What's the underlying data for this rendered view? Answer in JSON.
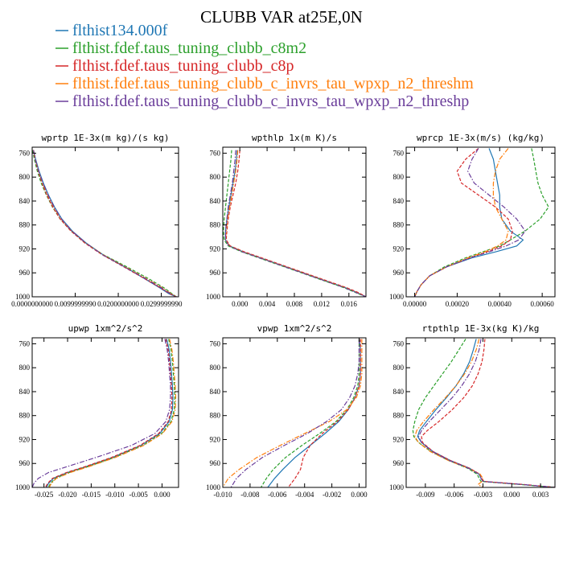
{
  "title": "CLUBB VAR at25E,0N",
  "legend": [
    {
      "label": "flthist134.000f",
      "color": "#1f77b4"
    },
    {
      "label": "flthist.fdef.taus_tuning_clubb_c8m2",
      "color": "#2ca02c"
    },
    {
      "label": "flthist.fdef.taus_tuning_clubb_c8p",
      "color": "#d62728"
    },
    {
      "label": "flthist.fdef.taus_tuning_clubb_c_invrs_tau_wpxp_n2_threshm",
      "color": "#ff7f0e"
    },
    {
      "label": "flthist.fdef.taus_tuning_clubb_c_invrs_tau_wpxp_n2_threshp",
      "color": "#6a3d9a"
    }
  ],
  "chart_data": [
    {
      "type": "line",
      "title": "wprtp 1E-3x(m kg)/(s kg)",
      "xlim": [
        0,
        0.034
      ],
      "ylim": [
        1000,
        750
      ],
      "y_reversed": true,
      "xticks": [
        0,
        0.01,
        0.02,
        0.03
      ],
      "xticklabels": [
        "0.0000000000",
        "0.0099999990",
        "0.0200000000",
        "0.0299999990"
      ],
      "yticks": [
        760,
        800,
        840,
        880,
        920,
        960,
        1000
      ],
      "y": [
        755,
        770,
        790,
        810,
        830,
        850,
        870,
        890,
        910,
        930,
        950,
        970,
        985,
        995,
        1000
      ],
      "series": [
        {
          "x": [
            0.0003,
            0.0008,
            0.0016,
            0.0026,
            0.0038,
            0.0052,
            0.0069,
            0.0093,
            0.0125,
            0.0165,
            0.0215,
            0.0262,
            0.0296,
            0.0318,
            0.0335
          ],
          "style": "solid"
        },
        {
          "x": [
            0.0001,
            0.0005,
            0.0012,
            0.0021,
            0.0033,
            0.0047,
            0.0065,
            0.009,
            0.0123,
            0.0166,
            0.022,
            0.0271,
            0.0306,
            0.0325,
            0.0335
          ],
          "style": "dashed"
        },
        {
          "x": [
            0.0003,
            0.0007,
            0.0014,
            0.0023,
            0.0034,
            0.0048,
            0.0065,
            0.009,
            0.0122,
            0.0163,
            0.0213,
            0.0262,
            0.0298,
            0.032,
            0.0335
          ],
          "style": "dashed"
        },
        {
          "x": [
            0.0003,
            0.0007,
            0.0015,
            0.0024,
            0.0036,
            0.005,
            0.0067,
            0.0092,
            0.0124,
            0.0165,
            0.0216,
            0.0266,
            0.0302,
            0.0323,
            0.0335
          ],
          "style": "dashdot"
        },
        {
          "x": [
            0.0003,
            0.0007,
            0.0015,
            0.0025,
            0.0037,
            0.0051,
            0.0068,
            0.0092,
            0.0124,
            0.0164,
            0.0214,
            0.0264,
            0.03,
            0.0321,
            0.0335
          ],
          "style": "dashdot"
        }
      ]
    },
    {
      "type": "line",
      "title": "wpthlp 1x(m K)/s",
      "xlim": [
        -0.0025,
        0.0185
      ],
      "ylim": [
        1000,
        750
      ],
      "y_reversed": true,
      "xticks": [
        0,
        0.004,
        0.008,
        0.012,
        0.016
      ],
      "xticklabels": [
        "0.000",
        "0.004",
        "0.008",
        "0.012",
        "0.016"
      ],
      "yticks": [
        760,
        800,
        840,
        880,
        920,
        960,
        1000
      ],
      "y": [
        755,
        770,
        790,
        810,
        830,
        850,
        870,
        890,
        905,
        915,
        925,
        935,
        945,
        955,
        965,
        975,
        985,
        993,
        1000
      ],
      "series": [
        {
          "x": [
            -0.0004,
            -0.0005,
            -0.0007,
            -0.001,
            -0.0013,
            -0.0016,
            -0.0019,
            -0.0021,
            -0.0021,
            -0.0015,
            0.0005,
            0.003,
            0.0055,
            0.008,
            0.0105,
            0.013,
            0.0155,
            0.0172,
            0.0185
          ],
          "style": "solid"
        },
        {
          "x": [
            -0.0012,
            -0.0013,
            -0.0015,
            -0.0017,
            -0.0019,
            -0.0021,
            -0.0023,
            -0.0024,
            -0.0023,
            -0.0017,
            0.0003,
            0.0028,
            0.0053,
            0.0078,
            0.0103,
            0.0128,
            0.0153,
            0.017,
            0.0185
          ],
          "style": "dashed"
        },
        {
          "x": [
            0.0,
            -0.0001,
            -0.0003,
            -0.0006,
            -0.001,
            -0.0014,
            -0.0017,
            -0.0019,
            -0.002,
            -0.0014,
            0.0007,
            0.0032,
            0.0057,
            0.0082,
            0.0107,
            0.0132,
            0.0157,
            0.0174,
            0.0185
          ],
          "style": "dashed"
        },
        {
          "x": [
            -0.0003,
            -0.0004,
            -0.0006,
            -0.0009,
            -0.0012,
            -0.0015,
            -0.0018,
            -0.002,
            -0.0021,
            -0.0015,
            0.0005,
            0.003,
            0.0055,
            0.008,
            0.0105,
            0.013,
            0.0155,
            0.0172,
            0.0185
          ],
          "style": "dashdot"
        },
        {
          "x": [
            -0.0006,
            -0.0007,
            -0.0009,
            -0.0011,
            -0.0014,
            -0.0017,
            -0.0019,
            -0.0021,
            -0.0021,
            -0.0016,
            0.0004,
            0.0029,
            0.0054,
            0.0079,
            0.0104,
            0.0129,
            0.0154,
            0.0171,
            0.0185
          ],
          "style": "dashdot"
        }
      ]
    },
    {
      "type": "line",
      "title": "wprcp 1E-3x(m/s) (kg/kg)",
      "xlim": [
        -4e-05,
        0.00066
      ],
      "ylim": [
        1000,
        750
      ],
      "y_reversed": true,
      "xticks": [
        0,
        0.0002,
        0.0004,
        0.0006
      ],
      "xticklabels": [
        "0.00000",
        "0.00020",
        "0.00040",
        "0.00060"
      ],
      "yticks": [
        760,
        800,
        840,
        880,
        920,
        960,
        1000
      ],
      "y": [
        752,
        770,
        790,
        810,
        830,
        850,
        870,
        890,
        905,
        915,
        925,
        935,
        950,
        965,
        980,
        992,
        1000
      ],
      "series": [
        {
          "x": [
            0.00035,
            0.00037,
            0.00038,
            0.00039,
            0.0004,
            0.0004,
            0.00041,
            0.00045,
            0.00051,
            0.00048,
            0.00038,
            0.00027,
            0.00015,
            7e-05,
            3e-05,
            1e-05,
            0.0
          ],
          "style": "solid"
        },
        {
          "x": [
            0.00055,
            0.00056,
            0.00057,
            0.00058,
            0.0006,
            0.00063,
            0.00059,
            0.00052,
            0.00045,
            0.0004,
            0.00032,
            0.00024,
            0.00014,
            7e-05,
            3e-05,
            1e-05,
            0.0
          ],
          "style": "dashed"
        },
        {
          "x": [
            0.0003,
            0.00024,
            0.0002,
            0.00022,
            0.0003,
            0.00038,
            0.00044,
            0.00046,
            0.00045,
            0.00041,
            0.00034,
            0.00026,
            0.00015,
            7e-05,
            3e-05,
            1e-05,
            0.0
          ],
          "style": "dashed"
        },
        {
          "x": [
            0.00044,
            0.0004,
            0.00038,
            0.00037,
            0.00037,
            0.00038,
            0.00041,
            0.00044,
            0.00043,
            0.00039,
            0.00033,
            0.00025,
            0.00015,
            7e-05,
            3e-05,
            1e-05,
            0.0
          ],
          "style": "dashdot"
        },
        {
          "x": [
            0.0003,
            0.00027,
            0.00025,
            0.00028,
            0.00035,
            0.00042,
            0.00048,
            0.00052,
            0.00049,
            0.00043,
            0.00035,
            0.00026,
            0.00015,
            7e-05,
            3e-05,
            1e-05,
            0.0
          ],
          "style": "dashdot"
        }
      ]
    },
    {
      "type": "line",
      "title": "upwp 1xm^2/s^2",
      "xlim": [
        -0.0275,
        0.0035
      ],
      "ylim": [
        1000,
        750
      ],
      "y_reversed": true,
      "xticks": [
        -0.025,
        -0.02,
        -0.015,
        -0.01,
        -0.005,
        0
      ],
      "xticklabels": [
        "-0.025",
        "-0.020",
        "-0.015",
        "-0.010",
        "-0.005",
        "0.000"
      ],
      "yticks": [
        760,
        800,
        840,
        880,
        920,
        960,
        1000
      ],
      "y": [
        752,
        770,
        790,
        810,
        830,
        850,
        870,
        890,
        910,
        930,
        950,
        965,
        975,
        985,
        993,
        1000
      ],
      "series": [
        {
          "x": [
            0.001,
            0.0015,
            0.0018,
            0.002,
            0.0022,
            0.0023,
            0.0022,
            0.0015,
            -0.0005,
            -0.0045,
            -0.0105,
            -0.016,
            -0.02,
            -0.023,
            -0.024,
            -0.0245
          ],
          "style": "solid"
        },
        {
          "x": [
            0.0014,
            0.0019,
            0.0022,
            0.0024,
            0.0026,
            0.0027,
            0.0026,
            0.0019,
            -0.0001,
            -0.0041,
            -0.0101,
            -0.0156,
            -0.0196,
            -0.0226,
            -0.0236,
            -0.0241
          ],
          "style": "dashed"
        },
        {
          "x": [
            0.0008,
            0.0013,
            0.0016,
            0.0018,
            0.002,
            0.0021,
            0.002,
            0.0013,
            -0.0007,
            -0.0047,
            -0.0107,
            -0.0162,
            -0.0202,
            -0.0232,
            -0.0242,
            -0.0247
          ],
          "style": "dashed"
        },
        {
          "x": [
            0.0016,
            0.0021,
            0.0024,
            0.0026,
            0.0028,
            0.0029,
            0.0028,
            0.0021,
            0.0001,
            -0.0039,
            -0.0099,
            -0.0154,
            -0.0194,
            -0.0224,
            -0.0234,
            -0.0239
          ],
          "style": "dashdot"
        },
        {
          "x": [
            0.0006,
            0.0011,
            0.0014,
            0.0016,
            0.0018,
            0.0018,
            0.0016,
            0.0008,
            -0.0015,
            -0.0065,
            -0.014,
            -0.02,
            -0.024,
            -0.0262,
            -0.0271,
            -0.0275
          ],
          "style": "dashdot"
        }
      ]
    },
    {
      "type": "line",
      "title": "vpwp 1xm^2/s^2",
      "xlim": [
        -0.01,
        0.0005
      ],
      "ylim": [
        1000,
        750
      ],
      "y_reversed": true,
      "xticks": [
        -0.01,
        -0.008,
        -0.006,
        -0.004,
        -0.002,
        0
      ],
      "xticklabels": [
        "-0.010",
        "-0.008",
        "-0.006",
        "-0.004",
        "-0.002",
        "0.000"
      ],
      "yticks": [
        760,
        800,
        840,
        880,
        920,
        960,
        1000
      ],
      "y": [
        752,
        770,
        790,
        810,
        830,
        850,
        870,
        890,
        910,
        930,
        950,
        970,
        985,
        1000
      ],
      "series": [
        {
          "x": [
            0.0,
            0.0001,
            0.0001,
            0.0001,
            0.0,
            -0.0003,
            -0.0008,
            -0.0015,
            -0.0025,
            -0.0036,
            -0.0047,
            -0.0056,
            -0.0062,
            -0.0067
          ],
          "style": "solid"
        },
        {
          "x": [
            0.0,
            0.0,
            0.0,
            0.0,
            -0.0001,
            -0.0004,
            -0.0009,
            -0.0017,
            -0.0029,
            -0.0042,
            -0.0054,
            -0.0063,
            -0.0068,
            -0.0072
          ],
          "style": "dashed"
        },
        {
          "x": [
            0.0001,
            0.0001,
            0.0001,
            0.0001,
            0.0,
            -0.0003,
            -0.0008,
            -0.0016,
            -0.0027,
            -0.0036,
            -0.0041,
            -0.0043,
            -0.0047,
            -0.0052
          ],
          "style": "dashed"
        },
        {
          "x": [
            0.0002,
            0.0002,
            0.0002,
            0.0002,
            0.0001,
            -0.0002,
            -0.0009,
            -0.0022,
            -0.004,
            -0.0058,
            -0.0075,
            -0.0088,
            -0.0096,
            -0.01
          ],
          "style": "dashdot"
        },
        {
          "x": [
            0.0,
            0.0,
            0.0,
            -0.0001,
            -0.0003,
            -0.0007,
            -0.0013,
            -0.0024,
            -0.0038,
            -0.0055,
            -0.0071,
            -0.0083,
            -0.009,
            -0.0094
          ],
          "style": "dashdot"
        }
      ]
    },
    {
      "type": "line",
      "title": "rtpthlp 1E-3x(kg K)/kg",
      "xlim": [
        -0.011,
        0.0045
      ],
      "ylim": [
        1000,
        750
      ],
      "y_reversed": true,
      "xticks": [
        -0.009,
        -0.006,
        -0.003,
        0,
        0.003
      ],
      "xticklabels": [
        "-0.009",
        "-0.006",
        "-0.003",
        "0.000",
        "0.003"
      ],
      "yticks": [
        760,
        800,
        840,
        880,
        920,
        960,
        1000
      ],
      "y": [
        752,
        770,
        790,
        810,
        830,
        850,
        870,
        890,
        905,
        915,
        925,
        940,
        955,
        968,
        978,
        985,
        990,
        995,
        1000
      ],
      "series": [
        {
          "x": [
            -0.0037,
            -0.004,
            -0.0044,
            -0.005,
            -0.0058,
            -0.0068,
            -0.0079,
            -0.0089,
            -0.0096,
            -0.0098,
            -0.0094,
            -0.0082,
            -0.0064,
            -0.0044,
            -0.0034,
            -0.0032,
            -0.003,
            0.001,
            0.0045
          ],
          "style": "solid"
        },
        {
          "x": [
            -0.0048,
            -0.0055,
            -0.0063,
            -0.0072,
            -0.0081,
            -0.009,
            -0.0097,
            -0.0101,
            -0.0103,
            -0.0102,
            -0.0097,
            -0.0084,
            -0.0066,
            -0.0046,
            -0.0036,
            -0.0034,
            -0.0032,
            0.0008,
            0.0045
          ],
          "style": "dashed"
        },
        {
          "x": [
            -0.0028,
            -0.0029,
            -0.0031,
            -0.0035,
            -0.0041,
            -0.005,
            -0.0062,
            -0.0076,
            -0.0088,
            -0.0094,
            -0.0093,
            -0.0082,
            -0.0064,
            -0.0044,
            -0.0033,
            -0.0031,
            -0.0029,
            0.0012,
            0.0045
          ],
          "style": "dashed"
        },
        {
          "x": [
            -0.0034,
            -0.0037,
            -0.0042,
            -0.0049,
            -0.0058,
            -0.0069,
            -0.0081,
            -0.0092,
            -0.0099,
            -0.0101,
            -0.0097,
            -0.0085,
            -0.0066,
            -0.0045,
            -0.0033,
            -0.003,
            -0.0031,
            -0.0035,
            -0.003
          ],
          "style": "dashdot"
        },
        {
          "x": [
            -0.0032,
            -0.0034,
            -0.0038,
            -0.0044,
            -0.0052,
            -0.0062,
            -0.0074,
            -0.0086,
            -0.0094,
            -0.0097,
            -0.0094,
            -0.0083,
            -0.0065,
            -0.0045,
            -0.0034,
            -0.0032,
            -0.003,
            0.001,
            0.0045
          ],
          "style": "dashdot"
        }
      ]
    }
  ]
}
